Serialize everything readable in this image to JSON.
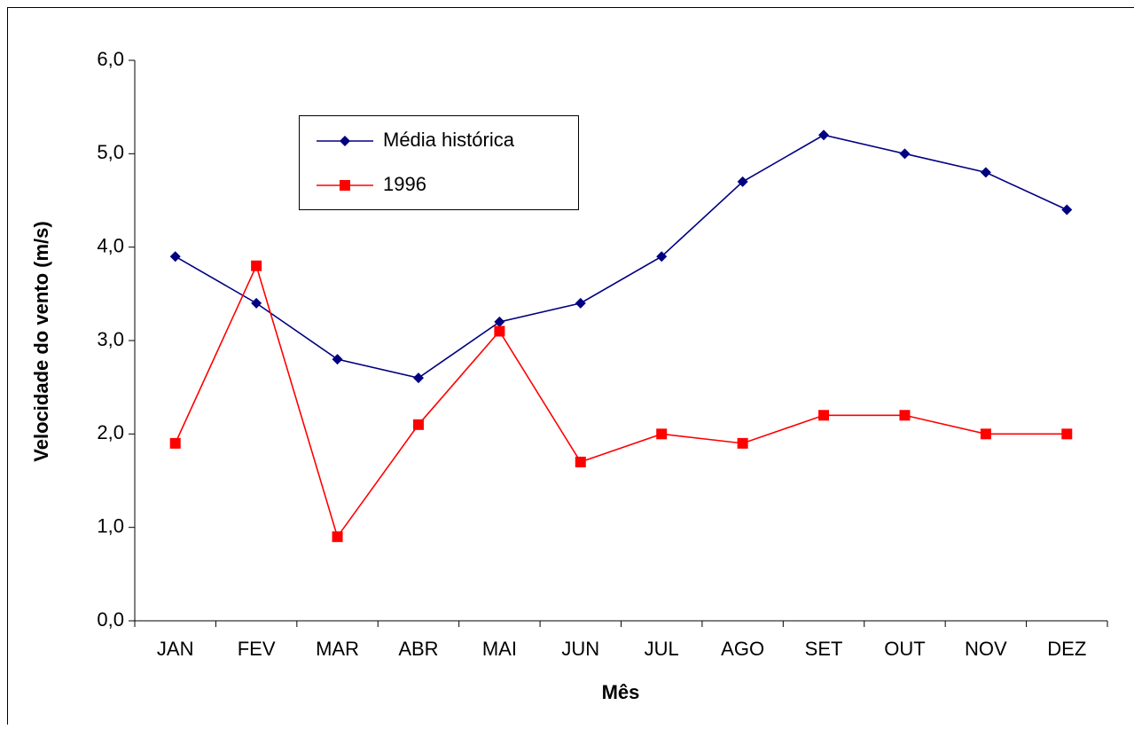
{
  "chart_data": {
    "type": "line",
    "x_label": "Mês",
    "y_label": "Velocidade do vento (m/s)",
    "categories": [
      "JAN",
      "FEV",
      "MAR",
      "ABR",
      "MAI",
      "JUN",
      "JUL",
      "AGO",
      "SET",
      "OUT",
      "NOV",
      "DEZ"
    ],
    "series": [
      {
        "name": "Média histórica",
        "color": "#000080",
        "marker": "diamond",
        "values": [
          3.9,
          3.4,
          2.8,
          2.6,
          3.2,
          3.4,
          3.9,
          4.7,
          5.2,
          5.0,
          4.8,
          4.4
        ]
      },
      {
        "name": "1996",
        "color": "#ff0000",
        "marker": "square",
        "values": [
          1.9,
          3.8,
          0.9,
          2.1,
          3.1,
          1.7,
          2.0,
          1.9,
          2.2,
          2.2,
          2.0,
          2.0
        ]
      }
    ],
    "ylim": [
      0,
      6
    ],
    "yticks": [
      {
        "value": 0,
        "label": "0,0"
      },
      {
        "value": 1,
        "label": "1,0"
      },
      {
        "value": 2,
        "label": "2,0"
      },
      {
        "value": 3,
        "label": "3,0"
      },
      {
        "value": 4,
        "label": "4,0"
      },
      {
        "value": 5,
        "label": "5,0"
      },
      {
        "value": 6,
        "label": "6,0"
      }
    ],
    "grid": false,
    "legend": "top-left"
  }
}
